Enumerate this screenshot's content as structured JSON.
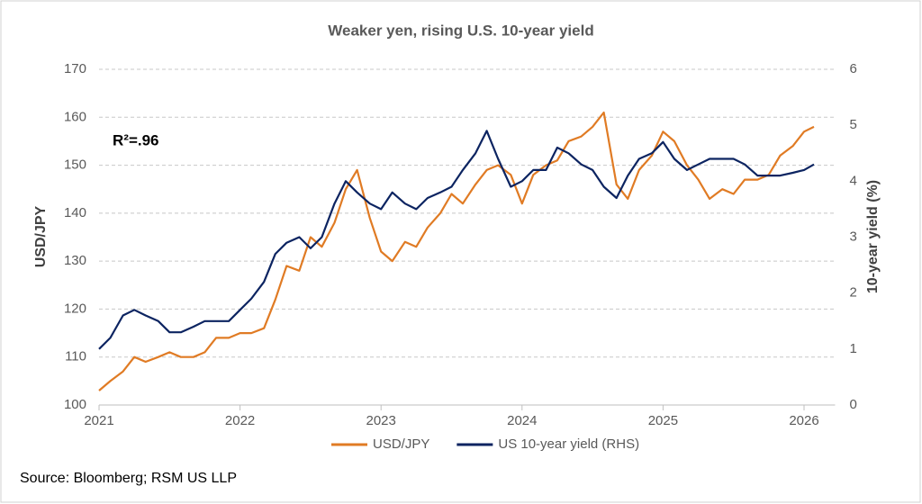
{
  "chart_data": {
    "type": "line",
    "title": "Weaker yen, rising U.S. 10-year yield",
    "y_label": "USD/JPY",
    "y2_label": "10-year yield (%)",
    "annotation": "R²=.96",
    "source": "Source: Bloomberg; RSM US LLP",
    "x": [
      2021,
      2021.08,
      2021.17,
      2021.25,
      2021.33,
      2021.42,
      2021.5,
      2021.58,
      2021.67,
      2021.75,
      2021.83,
      2021.92,
      2022,
      2022.08,
      2022.17,
      2022.25,
      2022.33,
      2022.42,
      2022.5,
      2022.58,
      2022.67,
      2022.75,
      2022.83,
      2022.92,
      2023,
      2023.08,
      2023.17,
      2023.25,
      2023.33,
      2023.42,
      2023.5,
      2023.58,
      2023.67,
      2023.75,
      2023.83,
      2023.92,
      2024,
      2024.08,
      2024.17,
      2024.25,
      2024.33,
      2024.42,
      2024.5,
      2024.58,
      2024.67,
      2024.75,
      2024.83,
      2024.92,
      2025,
      2025.08,
      2025.17,
      2025.25,
      2025.33,
      2025.42,
      2025.5,
      2025.58,
      2025.67,
      2025.75,
      2025.83,
      2025.92,
      2026,
      2026.07
    ],
    "series": [
      {
        "name": "USD/JPY",
        "color": "#e07b24",
        "axis": "y",
        "values": [
          103,
          105,
          107,
          110,
          109,
          110,
          111,
          110,
          110,
          111,
          114,
          114,
          115,
          115,
          116,
          122,
          129,
          128,
          135,
          133,
          138,
          145,
          149,
          139,
          132,
          130,
          134,
          133,
          137,
          140,
          144,
          142,
          146,
          149,
          150,
          148,
          142,
          148,
          150,
          151,
          155,
          156,
          158,
          161,
          146,
          143,
          149,
          152,
          157,
          155,
          150,
          147,
          143,
          145,
          144,
          147,
          147,
          148,
          152,
          154,
          157,
          158
        ]
      },
      {
        "name": "US 10-year yield (RHS)",
        "color": "#0c2461",
        "axis": "y2",
        "values": [
          1.0,
          1.2,
          1.6,
          1.7,
          1.6,
          1.5,
          1.3,
          1.3,
          1.4,
          1.5,
          1.5,
          1.5,
          1.7,
          1.9,
          2.2,
          2.7,
          2.9,
          3.0,
          2.8,
          3.0,
          3.6,
          4.0,
          3.8,
          3.6,
          3.5,
          3.8,
          3.6,
          3.5,
          3.7,
          3.8,
          3.9,
          4.2,
          4.5,
          4.9,
          4.4,
          3.9,
          4.0,
          4.2,
          4.2,
          4.6,
          4.5,
          4.3,
          4.2,
          3.9,
          3.7,
          4.1,
          4.4,
          4.5,
          4.7,
          4.4,
          4.2,
          4.3,
          4.4,
          4.4,
          4.4,
          4.3,
          4.1,
          4.1,
          4.1,
          4.15,
          4.2,
          4.3
        ]
      }
    ],
    "xlim": [
      2021,
      2026.22
    ],
    "xticks": [
      2021,
      2022,
      2023,
      2024,
      2025,
      2026
    ],
    "ylim": [
      100,
      170
    ],
    "yticks": [
      100,
      110,
      120,
      130,
      140,
      150,
      160,
      170
    ],
    "y2lim": [
      0,
      6
    ],
    "y2ticks": [
      0,
      1,
      2,
      3,
      4,
      5,
      6
    ],
    "grid": true,
    "legend": "bottom"
  }
}
